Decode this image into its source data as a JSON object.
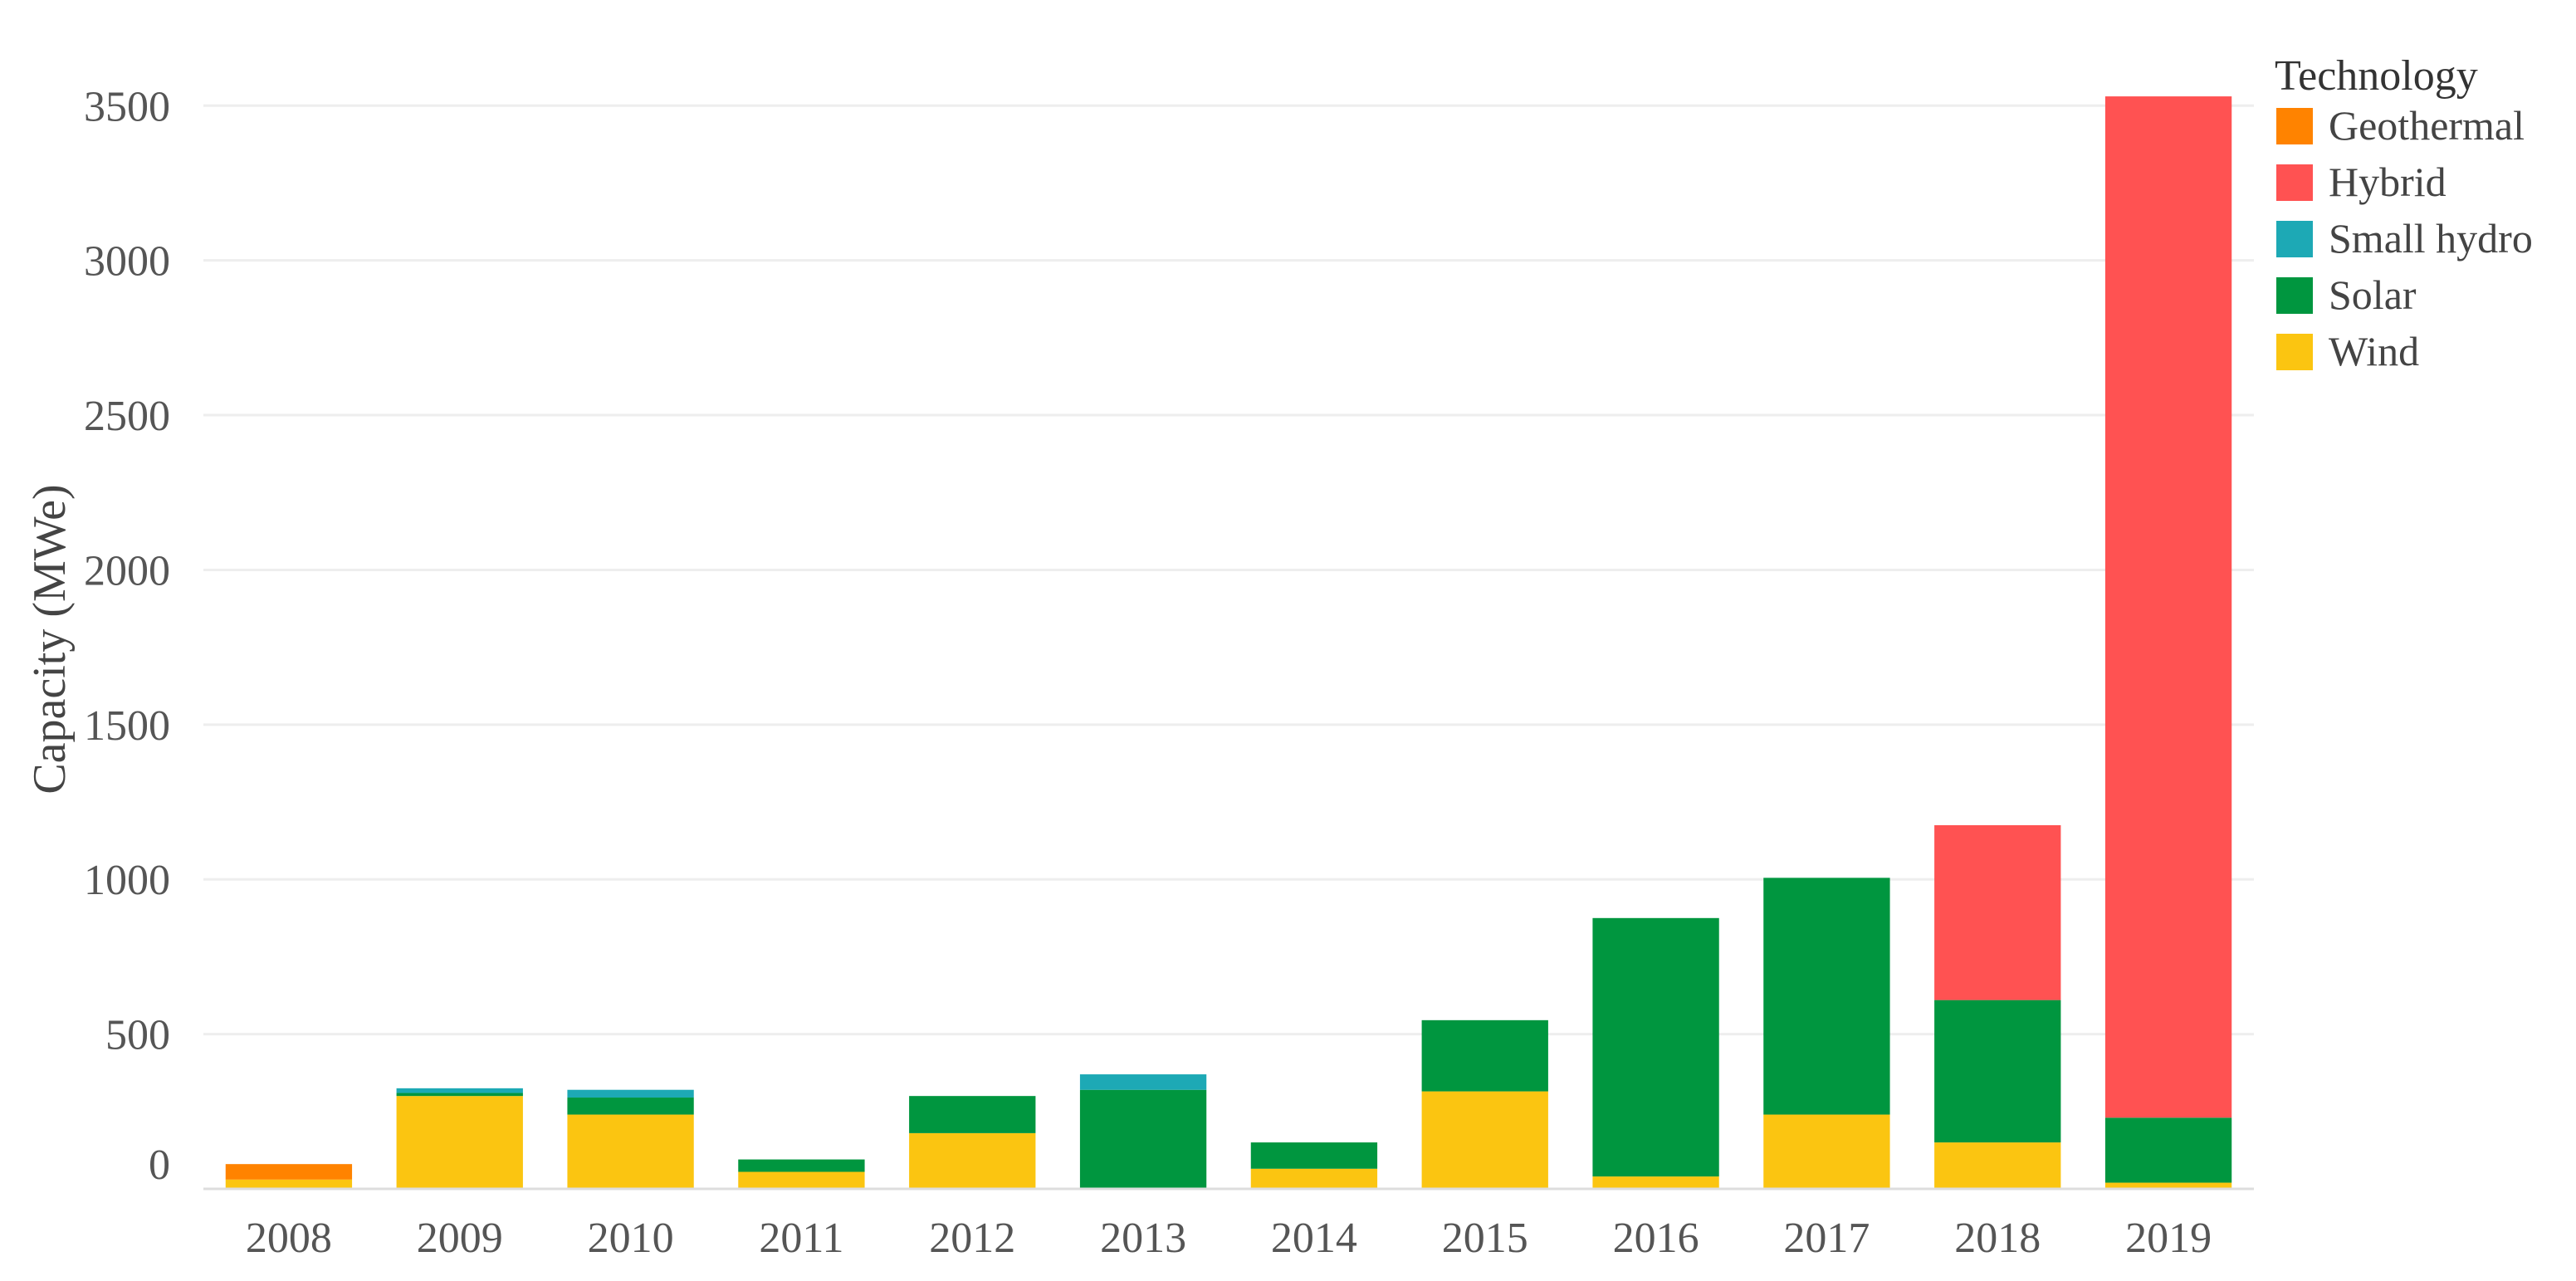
{
  "chart_data": {
    "type": "bar",
    "stacked": true,
    "title": "",
    "xlabel": "",
    "ylabel": "Capacity (MWe)",
    "ylim": [
      0,
      3600
    ],
    "yticks": [
      0,
      500,
      1000,
      1500,
      2000,
      2500,
      3000,
      3500
    ],
    "grid": true,
    "legend_position": "top-right",
    "legend_title": "Technology",
    "categories": [
      "2008",
      "2009",
      "2010",
      "2011",
      "2012",
      "2013",
      "2014",
      "2015",
      "2016",
      "2017",
      "2018",
      "2019"
    ],
    "series": [
      {
        "name": "Wind",
        "color": "#FBC511",
        "values": [
          30,
          300,
          240,
          55,
          180,
          0,
          65,
          315,
          40,
          240,
          150,
          20
        ]
      },
      {
        "name": "Solar",
        "color": "#00963F",
        "values": [
          0,
          10,
          55,
          40,
          120,
          320,
          85,
          230,
          835,
          765,
          460,
          210
        ]
      },
      {
        "name": "Small hydro",
        "color": "#1DA9B5",
        "values": [
          0,
          15,
          25,
          0,
          0,
          50,
          0,
          0,
          0,
          0,
          0,
          0
        ]
      },
      {
        "name": "Hybrid",
        "color": "#FF5252",
        "values": [
          0,
          0,
          0,
          0,
          0,
          0,
          0,
          0,
          0,
          0,
          565,
          3300
        ]
      },
      {
        "name": "Geothermal",
        "color": "#FF8300",
        "values": [
          50,
          0,
          0,
          0,
          0,
          0,
          0,
          0,
          0,
          0,
          0,
          0
        ]
      }
    ]
  }
}
